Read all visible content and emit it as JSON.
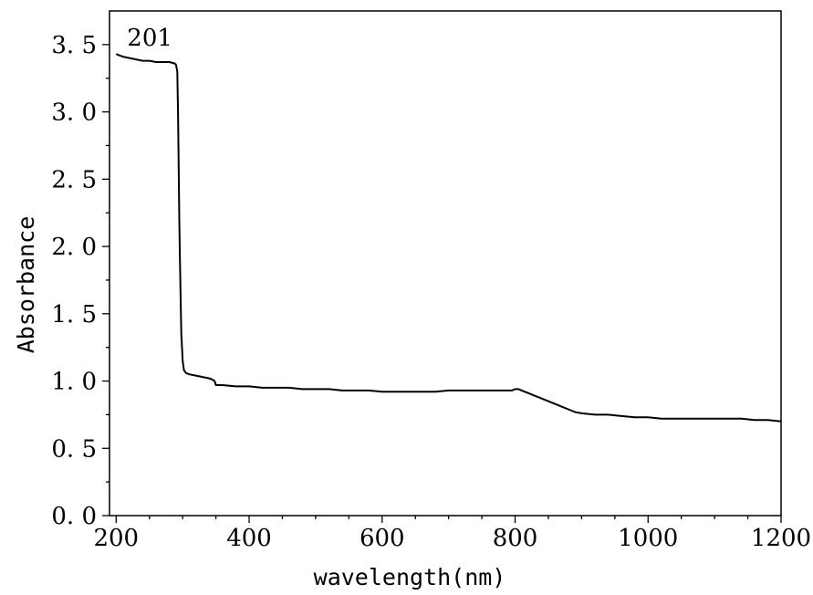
{
  "chart_data": {
    "type": "line",
    "title": "",
    "xlabel": "wavelength(nm)",
    "ylabel": "Absorbance",
    "xlim": [
      190,
      1200
    ],
    "ylim": [
      0,
      3.75
    ],
    "x_ticks": [
      200,
      400,
      600,
      800,
      1000,
      1200
    ],
    "x_tick_labels": [
      "200",
      "400",
      "600",
      "800",
      "1000",
      "1200"
    ],
    "y_ticks": [
      0,
      0.5,
      1.0,
      1.5,
      2.0,
      2.5,
      3.0,
      3.5
    ],
    "y_tick_labels": [
      "0. 0",
      "0. 5",
      "1. 0",
      "1. 5",
      "2. 0",
      "2. 5",
      "3. 0",
      "3. 5"
    ],
    "grid": false,
    "legend": "none",
    "annotations": [
      {
        "text": "201",
        "x": 200,
        "y": 3.45
      }
    ],
    "series": [
      {
        "color": "#000000",
        "x": [
          200,
          205,
          210,
          220,
          230,
          240,
          250,
          260,
          270,
          280,
          288,
          290,
          292,
          293,
          294,
          295,
          296,
          297,
          298,
          300,
          302,
          305,
          310,
          320,
          330,
          340,
          345,
          348,
          350,
          355,
          360,
          380,
          400,
          420,
          440,
          460,
          480,
          500,
          520,
          540,
          560,
          580,
          600,
          620,
          640,
          660,
          680,
          700,
          720,
          740,
          760,
          780,
          795,
          800,
          805,
          810,
          820,
          830,
          840,
          850,
          860,
          870,
          880,
          890,
          900,
          920,
          940,
          960,
          980,
          1000,
          1020,
          1040,
          1060,
          1080,
          1100,
          1120,
          1140,
          1160,
          1180,
          1200
        ],
        "y": [
          3.43,
          3.42,
          3.41,
          3.4,
          3.39,
          3.38,
          3.38,
          3.37,
          3.37,
          3.37,
          3.36,
          3.35,
          3.3,
          3.0,
          2.6,
          2.2,
          1.9,
          1.6,
          1.35,
          1.15,
          1.08,
          1.06,
          1.05,
          1.04,
          1.03,
          1.02,
          1.01,
          1.0,
          0.97,
          0.97,
          0.97,
          0.96,
          0.96,
          0.95,
          0.95,
          0.95,
          0.94,
          0.94,
          0.94,
          0.93,
          0.93,
          0.93,
          0.92,
          0.92,
          0.92,
          0.92,
          0.92,
          0.93,
          0.93,
          0.93,
          0.93,
          0.93,
          0.93,
          0.94,
          0.94,
          0.93,
          0.91,
          0.89,
          0.87,
          0.85,
          0.83,
          0.81,
          0.79,
          0.77,
          0.76,
          0.75,
          0.75,
          0.74,
          0.73,
          0.73,
          0.72,
          0.72,
          0.72,
          0.72,
          0.72,
          0.72,
          0.72,
          0.71,
          0.71,
          0.7
        ]
      }
    ]
  }
}
